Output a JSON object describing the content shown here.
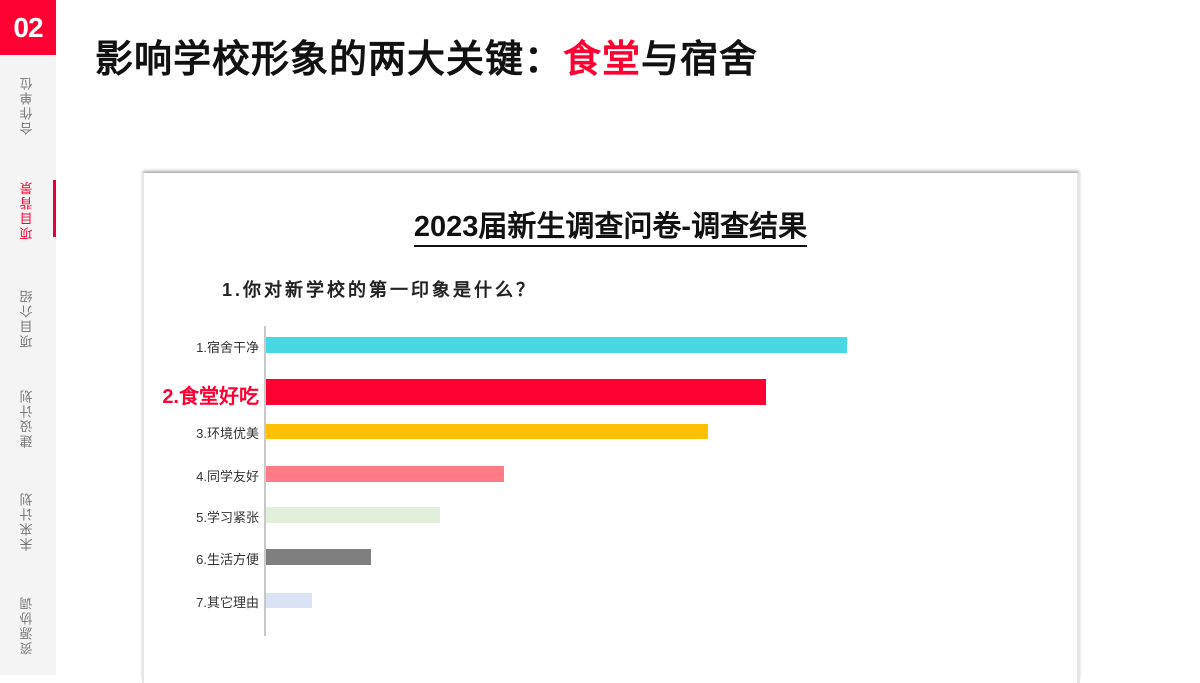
{
  "sidebar": {
    "page_number": "02",
    "items": [
      {
        "label": "合作单位",
        "active": false
      },
      {
        "label": "项目背景",
        "active": true
      },
      {
        "label": "项目介绍",
        "active": false
      },
      {
        "label": "建设计划",
        "active": false
      },
      {
        "label": "未来计划",
        "active": false
      },
      {
        "label": "资源协调",
        "active": false
      }
    ]
  },
  "header": {
    "title_prefix": "影响学校形象的两大关键：",
    "title_highlight": "食堂",
    "title_suffix": "与宿舍",
    "highlight_color": "#ff0033"
  },
  "card": {
    "title": "2023届新生调查问卷-调查结果",
    "question": "1.你对新学校的第一印象是什么？"
  },
  "chart_data": {
    "type": "bar",
    "orientation": "horizontal",
    "title": "2023届新生调查问卷-调查结果",
    "subtitle": "1.你对新学校的第一印象是什么？",
    "xlabel": "",
    "ylabel": "",
    "grid": false,
    "legend": "none",
    "categories": [
      "1.宿舍干净",
      "2.食堂好吃",
      "3.环境优美",
      "4.同学友好",
      "5.学习紧张",
      "6.生活方便",
      "7.其它理由"
    ],
    "values": [
      100,
      86,
      76,
      41,
      30,
      18,
      8
    ],
    "value_note": "relative bar lengths (no axis ticks shown); longest bar = 100",
    "colors": [
      "#48d8e4",
      "#ff0033",
      "#ffc000",
      "#ff7c86",
      "#e2efda",
      "#7f7f7f",
      "#dae3f3"
    ],
    "highlight_category": "2.食堂好吃",
    "highlight_color": "#ff0033"
  }
}
